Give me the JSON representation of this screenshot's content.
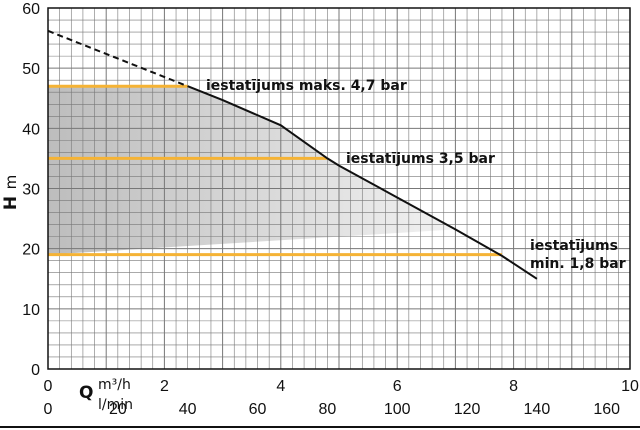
{
  "chart_data": {
    "type": "line",
    "y_axis": {
      "label": "H",
      "unit": "m",
      "range": [
        0,
        60
      ],
      "ticks": [
        0,
        10,
        20,
        30,
        40,
        50,
        60
      ]
    },
    "x_axis_primary": {
      "label": "Q",
      "unit": "m³/h",
      "range": [
        0,
        10
      ],
      "ticks": [
        0,
        2,
        4,
        6,
        8,
        10
      ]
    },
    "x_axis_secondary": {
      "unit": "l/min",
      "ticks": [
        0,
        20,
        40,
        60,
        80,
        100,
        120,
        140,
        160
      ]
    },
    "grid": true,
    "pump_curve_dashed": {
      "x": [
        0,
        2.4
      ],
      "y": [
        56.2,
        47
      ]
    },
    "pump_curve_solid": {
      "x": [
        2.4,
        3,
        4,
        4.8,
        5,
        6,
        7,
        7.8,
        8.4
      ],
      "y": [
        47,
        44.7,
        40.5,
        35,
        33.8,
        28.5,
        23.2,
        18.8,
        15
      ]
    },
    "settings": [
      {
        "label": "iestatījums maks. 4,7 bar",
        "h": 47,
        "q_end": 2.4
      },
      {
        "label": "iestatījums 3,5 bar",
        "h": 35,
        "q_end": 4.8
      },
      {
        "label_line1": "iestatījums",
        "label_line2": "min. 1,8 bar",
        "h": 19,
        "q_end": 7.8
      }
    ],
    "colors": {
      "setting_line": "#f5b335",
      "curve": "#111111",
      "region_dark": "#bdbdbd",
      "region_light": "#f2f2f2",
      "grid": "#777777"
    }
  }
}
